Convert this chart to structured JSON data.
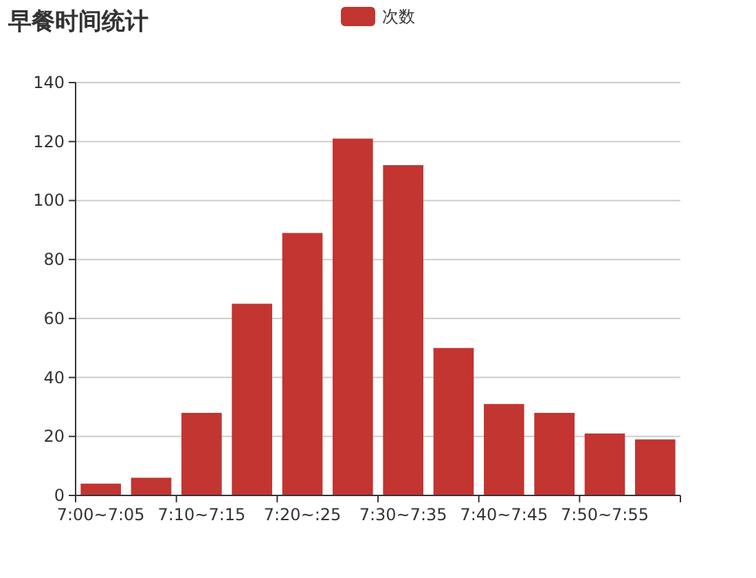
{
  "chart_data": {
    "type": "bar",
    "title": "早餐时间统计",
    "categories": [
      "7:00~7:05",
      null,
      "7:10~7:15",
      null,
      "7:20~:25",
      null,
      "7:30~7:35",
      null,
      "7:40~7:45",
      null,
      "7:50~7:55",
      null
    ],
    "series": [
      {
        "name": "次数",
        "color": "#c23531",
        "values": [
          4,
          6,
          28,
          65,
          89,
          121,
          112,
          50,
          31,
          28,
          21,
          19
        ]
      }
    ],
    "ylim": [
      0,
      140
    ],
    "yticks": [
      0,
      20,
      40,
      60,
      80,
      100,
      120,
      140
    ],
    "grid": "y",
    "legend": "top"
  }
}
